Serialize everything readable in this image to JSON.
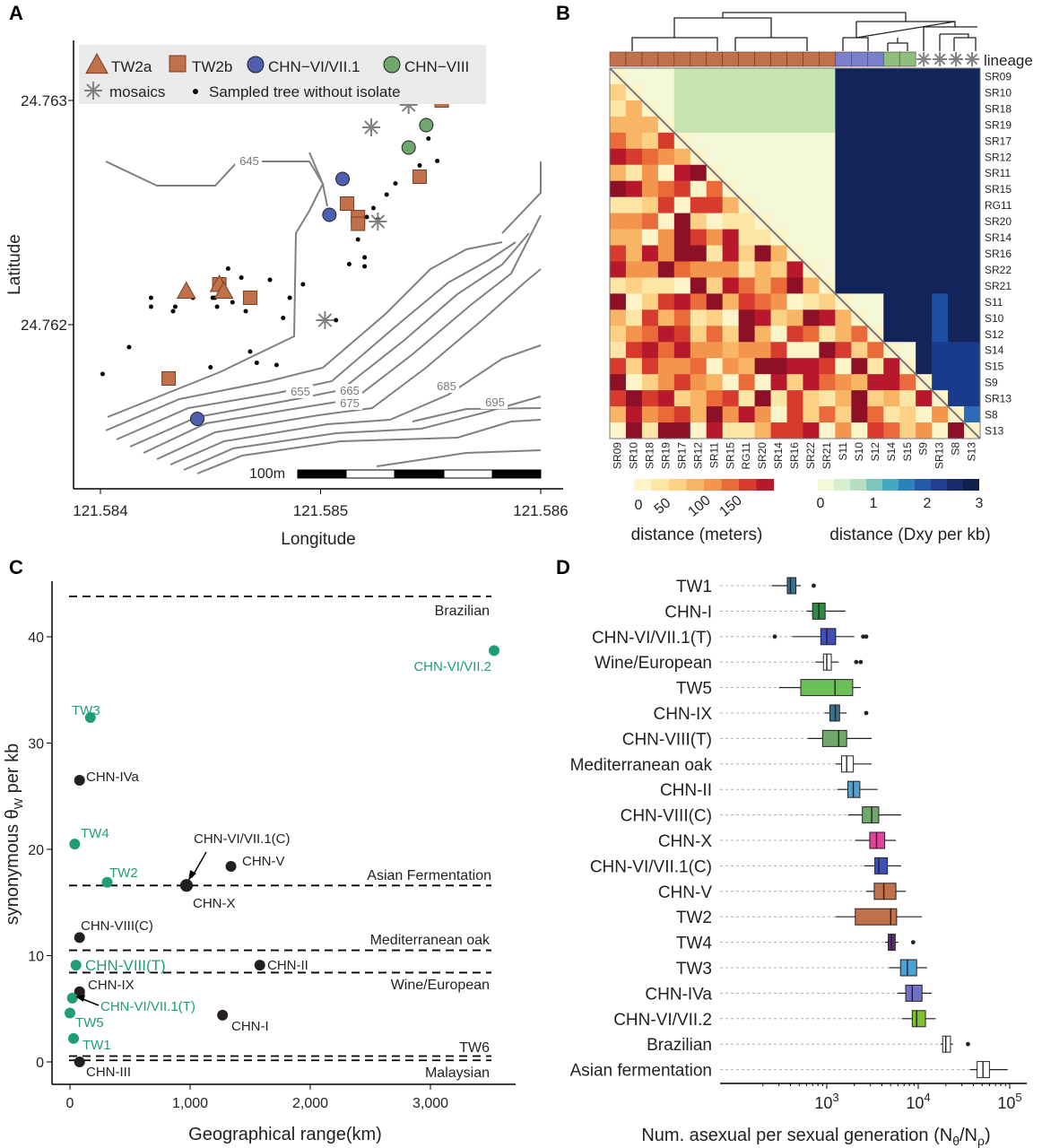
{
  "figure_colors": {
    "tw2": "#c0704a",
    "chn_vi": "#4f5fb0",
    "chn_viii": "#6fa86a",
    "green_label": "#1f9e73",
    "black": "#231f20",
    "grey_line": "#808080"
  },
  "chart_data": [
    {
      "panel": "A",
      "type": "scatter",
      "xlabel": "Longitude",
      "ylabel": "Latitude",
      "xticks": [
        "121.584",
        "121.585",
        "121.586"
      ],
      "yticks": [
        "24.763",
        "24.762"
      ],
      "xlim": [
        121.584,
        121.586
      ],
      "ylim": [
        24.7614,
        24.7632
      ],
      "legend": [
        {
          "label": "TW2a",
          "marker": "triangle",
          "color": "#c0704a"
        },
        {
          "label": "TW2b",
          "marker": "square",
          "color": "#c0704a"
        },
        {
          "label": "CHN−VI/VII.1",
          "marker": "circle",
          "color": "#4f5fb0"
        },
        {
          "label": "CHN−VIII",
          "marker": "circle",
          "color": "#6fa86a"
        },
        {
          "label": "mosaics",
          "marker": "asterisk",
          "color": "#808080"
        },
        {
          "label": "Sampled tree without isolate",
          "marker": "dot",
          "color": "#000000"
        }
      ],
      "contour_labels": [
        "645",
        "655",
        "665",
        "675",
        "685",
        "695"
      ],
      "scale_label": "100m",
      "points": {
        "TW2a": [
          [
            121.58439,
            24.76215
          ],
          [
            121.58454,
            24.76218
          ],
          [
            121.58456,
            24.76215
          ]
        ],
        "TW2b": [
          [
            121.58431,
            24.76176
          ],
          [
            121.58454,
            24.76218
          ],
          [
            121.58468,
            24.76212
          ],
          [
            121.58512,
            24.76254
          ],
          [
            121.58517,
            24.76248
          ],
          [
            121.58517,
            24.76245
          ],
          [
            121.58545,
            24.76266
          ],
          [
            121.58555,
            24.763
          ]
        ],
        "CHN-VI/VII.1": [
          [
            121.58444,
            24.76158
          ],
          [
            121.58504,
            24.76249
          ],
          [
            121.5851,
            24.76265
          ]
        ],
        "CHN-VIII": [
          [
            121.5854,
            24.76279
          ],
          [
            121.58548,
            24.76289
          ]
        ],
        "mosaics": [
          [
            121.58526,
            24.76246
          ],
          [
            121.58523,
            24.76288
          ],
          [
            121.5854,
            24.76298
          ],
          [
            121.58502,
            24.76202
          ]
        ],
        "sampled": [
          [
            121.58401,
            24.76178
          ],
          [
            121.58413,
            24.7619
          ],
          [
            121.58423,
            24.76212
          ],
          [
            121.58423,
            24.76208
          ],
          [
            121.58433,
            24.76206
          ],
          [
            121.58434,
            24.76208
          ],
          [
            121.58442,
            24.76212
          ],
          [
            121.5845,
            24.76181
          ],
          [
            121.58451,
            24.76212
          ],
          [
            121.58452,
            24.76212
          ],
          [
            121.58453,
            24.76208
          ],
          [
            121.58458,
            24.76225
          ],
          [
            121.5846,
            24.7621
          ],
          [
            121.58464,
            24.76221
          ],
          [
            121.58466,
            24.76206
          ],
          [
            121.58468,
            24.76188
          ],
          [
            121.58471,
            24.76183
          ],
          [
            121.58477,
            24.7622
          ],
          [
            121.5848,
            24.76182
          ],
          [
            121.58483,
            24.76203
          ],
          [
            121.58486,
            24.76212
          ],
          [
            121.58492,
            24.76218
          ],
          [
            121.58507,
            24.76202
          ],
          [
            121.58513,
            24.76227
          ],
          [
            121.58517,
            24.76238
          ],
          [
            121.5852,
            24.7623
          ],
          [
            121.5852,
            24.76226
          ],
          [
            121.58521,
            24.76248
          ],
          [
            121.58524,
            24.76252
          ],
          [
            121.58526,
            24.76247
          ],
          [
            121.5853,
            24.76258
          ],
          [
            121.58534,
            24.76263
          ],
          [
            121.58545,
            24.76271
          ],
          [
            121.58549,
            24.76283
          ],
          [
            121.58553,
            24.76273
          ],
          [
            121.58471,
            24.763
          ]
        ]
      }
    },
    {
      "panel": "B",
      "type": "heatmap",
      "row_labels": [
        "SR09",
        "SR10",
        "SR18",
        "SR19",
        "SR17",
        "SR12",
        "SR11",
        "SR15",
        "RG11",
        "SR20",
        "SR14",
        "SR16",
        "SR22",
        "SR21",
        "S11",
        "S10",
        "S12",
        "S14",
        "S15",
        "S9",
        "SR13",
        "S8",
        "S13"
      ],
      "col_labels": [
        "SR09",
        "SR10",
        "SR18",
        "SR19",
        "SR17",
        "SR12",
        "SR11",
        "SR15",
        "RG11",
        "SR20",
        "SR14",
        "SR16",
        "SR22",
        "SR21",
        "S11",
        "S10",
        "S12",
        "S14",
        "S15",
        "S9",
        "SR13",
        "S8",
        "S13"
      ],
      "lineage_label": "lineage",
      "lineage_groups": [
        {
          "lineage": "TW2",
          "count": 14,
          "color": "#c0704a"
        },
        {
          "lineage": "CHN-VI/VII.1",
          "count": 3,
          "color": "#7b80cc"
        },
        {
          "lineage": "CHN-VIII",
          "count": 2,
          "color": "#8fbf7c"
        },
        {
          "lineage": "mosaics",
          "count": 4,
          "color": "#808080"
        }
      ],
      "legend_meters": {
        "title": "distance (meters)",
        "ticks": [
          "0",
          "50",
          "100",
          "150"
        ]
      },
      "legend_dxy": {
        "title": "distance (Dxy per kb)",
        "ticks": [
          "0",
          "1",
          "2",
          "3"
        ]
      }
    },
    {
      "panel": "C",
      "type": "scatter",
      "xlabel": "Geographical range(km)",
      "ylabel_main": "synonymous θ",
      "ylabel_sub": "W",
      "ylabel_tail": " per kb",
      "xticks": [
        "0",
        "1,000",
        "2,000",
        "3,000"
      ],
      "xlim": [
        -200,
        3700
      ],
      "ylim": [
        -2,
        45
      ],
      "yticks": [
        "0",
        "10",
        "20",
        "30",
        "40"
      ],
      "hlines": [
        {
          "label": "Brazilian",
          "y": 43.8
        },
        {
          "label": "Asian Fermentation",
          "y": 16.6
        },
        {
          "label": "Mediterranean oak",
          "y": 10.5
        },
        {
          "label": "Wine/European",
          "y": 8.4
        },
        {
          "label": "TW6",
          "y": 0.55
        },
        {
          "label": "Malaysian",
          "y": 0.15
        }
      ],
      "points": [
        {
          "label": "CHN-VI/VII.2",
          "x": 3530,
          "y": 38.7,
          "group": "taiwan"
        },
        {
          "label": "TW3",
          "x": 170,
          "y": 32.4,
          "group": "taiwan"
        },
        {
          "label": "CHN-IVa",
          "x": 80,
          "y": 26.5,
          "group": "china"
        },
        {
          "label": "TW4",
          "x": 40,
          "y": 20.5,
          "group": "taiwan"
        },
        {
          "label": "CHN-VI/VII.1(C)",
          "x": 970,
          "y": 16.6,
          "group": "china"
        },
        {
          "label": "CHN-V",
          "x": 1340,
          "y": 18.4,
          "group": "china"
        },
        {
          "label": "TW2",
          "x": 310,
          "y": 16.9,
          "group": "taiwan"
        },
        {
          "label": "CHN-X",
          "x": 970,
          "y": 16.6,
          "group": "china"
        },
        {
          "label": "CHN-VIII(C)",
          "x": 80,
          "y": 11.7,
          "group": "china"
        },
        {
          "label": "CHN-VIII(T)",
          "x": 50,
          "y": 9.1,
          "group": "taiwan"
        },
        {
          "label": "CHN-II",
          "x": 1580,
          "y": 9.1,
          "group": "china"
        },
        {
          "label": "CHN-IX",
          "x": 80,
          "y": 6.6,
          "group": "china"
        },
        {
          "label": "CHN-VI/VII.1(T)",
          "x": 20,
          "y": 6.0,
          "group": "taiwan"
        },
        {
          "label": "TW5",
          "x": 0,
          "y": 4.6,
          "group": "taiwan"
        },
        {
          "label": "CHN-I",
          "x": 1270,
          "y": 4.4,
          "group": "china"
        },
        {
          "label": "TW1",
          "x": 30,
          "y": 2.2,
          "group": "taiwan"
        },
        {
          "label": "CHN-III",
          "x": 80,
          "y": 0.0,
          "group": "china"
        }
      ]
    },
    {
      "panel": "D",
      "type": "boxplot",
      "xlabel_main": "Num. asexual per sexual generation (N",
      "xlabel_sub1": "θ",
      "xlabel_mid": "/N",
      "xlabel_sub2": "ρ",
      "xlabel_tail": ")",
      "xscale": "log",
      "xlim": [
        150,
        120000
      ],
      "xticks": [
        {
          "base": "10",
          "exp": "3",
          "value": 1000
        },
        {
          "base": "10",
          "exp": "4",
          "value": 10000
        },
        {
          "base": "10",
          "exp": "5",
          "value": 100000
        }
      ],
      "boxes": [
        {
          "label": "TW1",
          "min": 250,
          "q1": 370,
          "median": 400,
          "q3": 460,
          "max": 520,
          "outliers": [
            720
          ],
          "color": "#3d6e8c"
        },
        {
          "label": "CHN-I",
          "min": 600,
          "q1": 700,
          "median": 820,
          "q3": 960,
          "max": 1600,
          "outliers": [],
          "color": "#2f8a47"
        },
        {
          "label": "CHN-VI/VII.1(T)",
          "min": 420,
          "q1": 860,
          "median": 1000,
          "q3": 1250,
          "max": 2000,
          "outliers": [
            270,
            2500,
            2700
          ],
          "color": "#3f4fb5"
        },
        {
          "label": "Wine/European",
          "min": 750,
          "q1": 920,
          "median": 1000,
          "q3": 1120,
          "max": 1350,
          "outliers": [
            2100,
            2350
          ],
          "color": "#ffffff"
        },
        {
          "label": "TW5",
          "min": 300,
          "q1": 520,
          "median": 1230,
          "q3": 1920,
          "max": 2350,
          "outliers": [],
          "color": "#6dbf5a"
        },
        {
          "label": "CHN-IX",
          "min": 950,
          "q1": 1080,
          "median": 1240,
          "q3": 1380,
          "max": 1650,
          "outliers": [
            2700
          ],
          "color": "#3d6e8c"
        },
        {
          "label": "CHN-VIII(T)",
          "min": 620,
          "q1": 900,
          "median": 1350,
          "q3": 1650,
          "max": 3100,
          "outliers": [],
          "color": "#6fa86a"
        },
        {
          "label": "Mediterranean oak",
          "min": 1250,
          "q1": 1450,
          "median": 1650,
          "q3": 1950,
          "max": 3100,
          "outliers": [],
          "color": "#ffffff"
        },
        {
          "label": "CHN-II",
          "min": 1300,
          "q1": 1700,
          "median": 1950,
          "q3": 2300,
          "max": 3600,
          "outliers": [],
          "color": "#5b9ec9"
        },
        {
          "label": "CHN-VIII(C)",
          "min": 1700,
          "q1": 2450,
          "median": 3100,
          "q3": 3700,
          "max": 6500,
          "outliers": [],
          "color": "#6fa86a"
        },
        {
          "label": "CHN-X",
          "min": 2050,
          "q1": 2950,
          "median": 3500,
          "q3": 4300,
          "max": 5700,
          "outliers": [],
          "color": "#e0449a"
        },
        {
          "label": "CHN-VI/VII.1(C)",
          "min": 2550,
          "q1": 3350,
          "median": 3700,
          "q3": 4600,
          "max": 6500,
          "outliers": [],
          "color": "#3f4fb5"
        },
        {
          "label": "CHN-V",
          "min": 2700,
          "q1": 3300,
          "median": 4200,
          "q3": 5700,
          "max": 7300,
          "outliers": [],
          "color": "#c0704a"
        },
        {
          "label": "TW2",
          "min": 1250,
          "q1": 2050,
          "median": 5000,
          "q3": 5800,
          "max": 11000,
          "outliers": [],
          "color": "#c0704a"
        },
        {
          "label": "TW4",
          "min": 4350,
          "q1": 4700,
          "median": 5100,
          "q3": 5600,
          "max": 6050,
          "outliers": [
            8800
          ],
          "color": "#5e2a7e"
        },
        {
          "label": "TW3",
          "min": 4800,
          "q1": 6400,
          "median": 7600,
          "q3": 9600,
          "max": 12500,
          "outliers": [],
          "color": "#4aa0d9"
        },
        {
          "label": "CHN-IVa",
          "min": 5900,
          "q1": 7300,
          "median": 8600,
          "q3": 11000,
          "max": 14000,
          "outliers": [],
          "color": "#6f72c4"
        },
        {
          "label": "CHN-VI/VII.2",
          "min": 6600,
          "q1": 8600,
          "median": 9600,
          "q3": 12000,
          "max": 15500,
          "outliers": [],
          "color": "#7dc22e"
        },
        {
          "label": "Brazilian",
          "min": 17500,
          "q1": 18500,
          "median": 20000,
          "q3": 22500,
          "max": 24000,
          "outliers": [
            35000
          ],
          "color": "#ffffff"
        },
        {
          "label": "Asian fermentation",
          "min": 37000,
          "q1": 44000,
          "median": 51000,
          "q3": 60000,
          "max": 95000,
          "outliers": [],
          "color": "#ffffff"
        }
      ]
    }
  ],
  "panel_letters": {
    "a": "A",
    "b": "B",
    "c": "C",
    "d": "D"
  }
}
